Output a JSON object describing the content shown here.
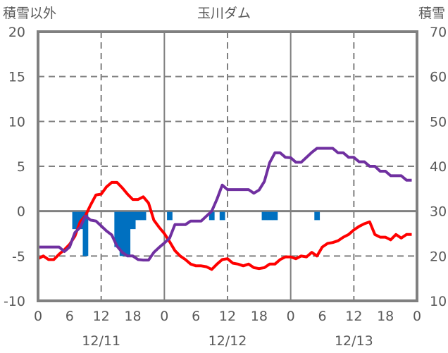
{
  "chart_data": {
    "type": "line",
    "title": "玉川ダム",
    "left_axis_label": "積雪以外",
    "right_axis_label": "積雪",
    "left_ylim": [
      -10,
      20
    ],
    "right_ylim": [
      10,
      70
    ],
    "left_ticks": [
      "20",
      "15",
      "10",
      "5",
      "0",
      "-5",
      "-10"
    ],
    "right_ticks": [
      "70",
      "60",
      "50",
      "40",
      "30",
      "20",
      "10"
    ],
    "x_hours_range": [
      0,
      72
    ],
    "x_tick_labels": [
      "0",
      "6",
      "12",
      "18",
      "0",
      "6",
      "12",
      "18",
      "0",
      "6",
      "12",
      "18",
      "0"
    ],
    "date_labels": [
      "12/11",
      "12/12",
      "12/13"
    ],
    "grid": true,
    "colors": {
      "temperature": "#ff0000",
      "snow_depth": "#7030a0",
      "precipitation": "#0070c0",
      "grid": "#808080",
      "text": "#595959"
    },
    "series": [
      {
        "name": "temperature",
        "axis": "left",
        "hours_start": 0,
        "values": [
          -5.3,
          -5,
          -5.4,
          -5.4,
          -4.8,
          -4.3,
          -3.7,
          -2.8,
          -1.2,
          -0.5,
          0.7,
          1.8,
          1.9,
          2.7,
          3.2,
          3.2,
          2.6,
          1.9,
          1.3,
          1.3,
          1.6,
          0.9,
          -1.0,
          -1.8,
          -2.5,
          -3.4,
          -4.4,
          -5.0,
          -5.4,
          -5.9,
          -6.1,
          -6.1,
          -6.2,
          -6.5,
          -5.9,
          -5.4,
          -5.3,
          -5.8,
          -5.9,
          -6.1,
          -5.9,
          -6.3,
          -6.4,
          -6.3,
          -5.9,
          -5.9,
          -5.4,
          -5.1,
          -5.1,
          -5.3,
          -5.0,
          -5.1,
          -4.6,
          -5.0,
          -4.0,
          -3.6,
          -3.5,
          -3.3,
          -2.9,
          -2.6,
          -2.1,
          -1.7,
          -1.4,
          -1.2,
          -2.6,
          -2.9,
          -2.9,
          -3.2,
          -2.6,
          -3.0,
          -2.6,
          -2.6
        ]
      },
      {
        "name": "snow_depth",
        "axis": "right",
        "hours_start": 0,
        "values": [
          22,
          22,
          22,
          22,
          22,
          21,
          22,
          25.2,
          26.4,
          28.9,
          28,
          27.8,
          26.7,
          25.6,
          24.7,
          22.2,
          20.8,
          20,
          20,
          19.2,
          19.1,
          19.1,
          20.8,
          21.9,
          22.9,
          24,
          27,
          27,
          27,
          27.8,
          27.8,
          27.8,
          28.9,
          30,
          32.7,
          35.8,
          34.8,
          34.8,
          34.8,
          34.8,
          34.8,
          34,
          34.7,
          36.6,
          40.8,
          43,
          43,
          42,
          41.9,
          40.9,
          40.9,
          42,
          43.1,
          44,
          44,
          44,
          44,
          43,
          43,
          42,
          42,
          41,
          41,
          40,
          40,
          38.9,
          38.9,
          37.9,
          37.9,
          37.9,
          36.9,
          36.9
        ]
      },
      {
        "name": "precipitation",
        "axis": "left",
        "type": "bar",
        "hours": [
          7,
          8,
          9,
          15,
          16,
          17,
          18,
          19,
          20,
          25,
          33,
          35,
          43,
          44,
          45,
          53
        ],
        "values": [
          -2,
          -2,
          -5,
          -4,
          -5,
          -5,
          -2,
          -1,
          -1,
          -1,
          -1,
          -1,
          -1,
          -1,
          -1,
          -1
        ]
      }
    ]
  }
}
